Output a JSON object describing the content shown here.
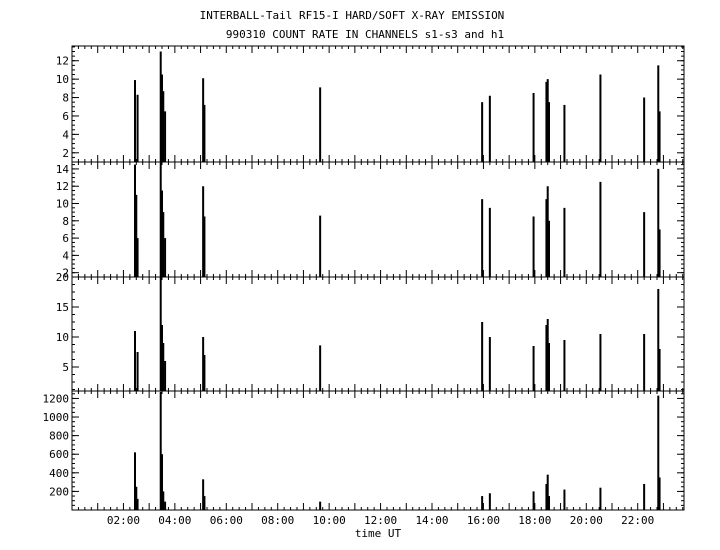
{
  "chart_data": {
    "type": "bar",
    "title": "INTERBALL-Tail RF15-I HARD/SOFT X-RAY EMISSION",
    "subtitle": "990310  COUNT RATE IN CHANNELS s1-s3 and h1",
    "xlabel": "time UT",
    "xlim": [
      0.0,
      23.8
    ],
    "x_tick_labels": [
      "02:00",
      "04:00",
      "06:00",
      "08:00",
      "10:00",
      "12:00",
      "14:00",
      "16:00",
      "18:00",
      "20:00",
      "22:00"
    ],
    "grid": false,
    "panels": [
      {
        "ylim": [
          1.0,
          13.6
        ],
        "yticks": [
          2,
          4,
          6,
          8,
          10,
          12
        ],
        "events": [
          {
            "x": 2.45,
            "y": 9.9
          },
          {
            "x": 2.55,
            "y": 8.3
          },
          {
            "x": 3.45,
            "y": 13.0
          },
          {
            "x": 3.5,
            "y": 10.5
          },
          {
            "x": 3.55,
            "y": 8.7
          },
          {
            "x": 3.62,
            "y": 6.5
          },
          {
            "x": 5.1,
            "y": 10.1
          },
          {
            "x": 5.15,
            "y": 7.2
          },
          {
            "x": 9.65,
            "y": 9.1
          },
          {
            "x": 15.95,
            "y": 7.5
          },
          {
            "x": 16.25,
            "y": 8.2
          },
          {
            "x": 17.95,
            "y": 8.5
          },
          {
            "x": 18.45,
            "y": 9.7
          },
          {
            "x": 18.5,
            "y": 10.0
          },
          {
            "x": 18.55,
            "y": 7.5
          },
          {
            "x": 19.15,
            "y": 7.2
          },
          {
            "x": 20.55,
            "y": 10.5
          },
          {
            "x": 22.25,
            "y": 8.0
          },
          {
            "x": 22.8,
            "y": 11.5
          },
          {
            "x": 22.85,
            "y": 6.5
          }
        ]
      },
      {
        "ylim": [
          1.5,
          14.8
        ],
        "yticks": [
          2,
          4,
          6,
          8,
          10,
          12,
          14
        ],
        "events": [
          {
            "x": 2.45,
            "y": 14.5
          },
          {
            "x": 2.5,
            "y": 11.0
          },
          {
            "x": 2.55,
            "y": 6.0
          },
          {
            "x": 3.45,
            "y": 14.8
          },
          {
            "x": 3.5,
            "y": 11.5
          },
          {
            "x": 3.55,
            "y": 9.0
          },
          {
            "x": 3.62,
            "y": 6.0
          },
          {
            "x": 5.1,
            "y": 12.0
          },
          {
            "x": 5.15,
            "y": 8.5
          },
          {
            "x": 9.65,
            "y": 8.6
          },
          {
            "x": 15.95,
            "y": 10.5
          },
          {
            "x": 16.25,
            "y": 9.5
          },
          {
            "x": 17.95,
            "y": 8.5
          },
          {
            "x": 18.45,
            "y": 10.5
          },
          {
            "x": 18.5,
            "y": 12.0
          },
          {
            "x": 18.55,
            "y": 8.0
          },
          {
            "x": 19.15,
            "y": 9.5
          },
          {
            "x": 20.55,
            "y": 12.5
          },
          {
            "x": 22.25,
            "y": 9.0
          },
          {
            "x": 22.8,
            "y": 14.0
          },
          {
            "x": 22.85,
            "y": 7.0
          }
        ]
      },
      {
        "ylim": [
          1.0,
          20.0
        ],
        "yticks": [
          5,
          10,
          15,
          20
        ],
        "events": [
          {
            "x": 2.45,
            "y": 11.0
          },
          {
            "x": 2.55,
            "y": 7.5
          },
          {
            "x": 3.45,
            "y": 20.0
          },
          {
            "x": 3.5,
            "y": 12.0
          },
          {
            "x": 3.55,
            "y": 9.0
          },
          {
            "x": 3.62,
            "y": 6.0
          },
          {
            "x": 5.1,
            "y": 10.0
          },
          {
            "x": 5.15,
            "y": 7.0
          },
          {
            "x": 9.65,
            "y": 8.6
          },
          {
            "x": 15.95,
            "y": 12.5
          },
          {
            "x": 16.25,
            "y": 10.0
          },
          {
            "x": 17.95,
            "y": 8.5
          },
          {
            "x": 18.45,
            "y": 12.0
          },
          {
            "x": 18.5,
            "y": 13.0
          },
          {
            "x": 18.55,
            "y": 9.0
          },
          {
            "x": 19.15,
            "y": 9.5
          },
          {
            "x": 20.55,
            "y": 10.5
          },
          {
            "x": 22.25,
            "y": 10.5
          },
          {
            "x": 22.8,
            "y": 18.0
          },
          {
            "x": 22.85,
            "y": 8.0
          }
        ]
      },
      {
        "ylim": [
          0,
          1280
        ],
        "yticks": [
          200,
          400,
          600,
          800,
          1000,
          1200
        ],
        "events": [
          {
            "x": 2.45,
            "y": 620
          },
          {
            "x": 2.5,
            "y": 250
          },
          {
            "x": 2.55,
            "y": 120
          },
          {
            "x": 3.45,
            "y": 1270
          },
          {
            "x": 3.5,
            "y": 600
          },
          {
            "x": 3.55,
            "y": 200
          },
          {
            "x": 3.62,
            "y": 90
          },
          {
            "x": 5.1,
            "y": 330
          },
          {
            "x": 5.15,
            "y": 150
          },
          {
            "x": 9.65,
            "y": 90
          },
          {
            "x": 15.95,
            "y": 150
          },
          {
            "x": 16.25,
            "y": 180
          },
          {
            "x": 17.95,
            "y": 200
          },
          {
            "x": 18.45,
            "y": 280
          },
          {
            "x": 18.5,
            "y": 380
          },
          {
            "x": 18.55,
            "y": 150
          },
          {
            "x": 19.15,
            "y": 220
          },
          {
            "x": 20.55,
            "y": 240
          },
          {
            "x": 22.25,
            "y": 280
          },
          {
            "x": 22.8,
            "y": 1230
          },
          {
            "x": 22.85,
            "y": 350
          }
        ]
      }
    ]
  }
}
